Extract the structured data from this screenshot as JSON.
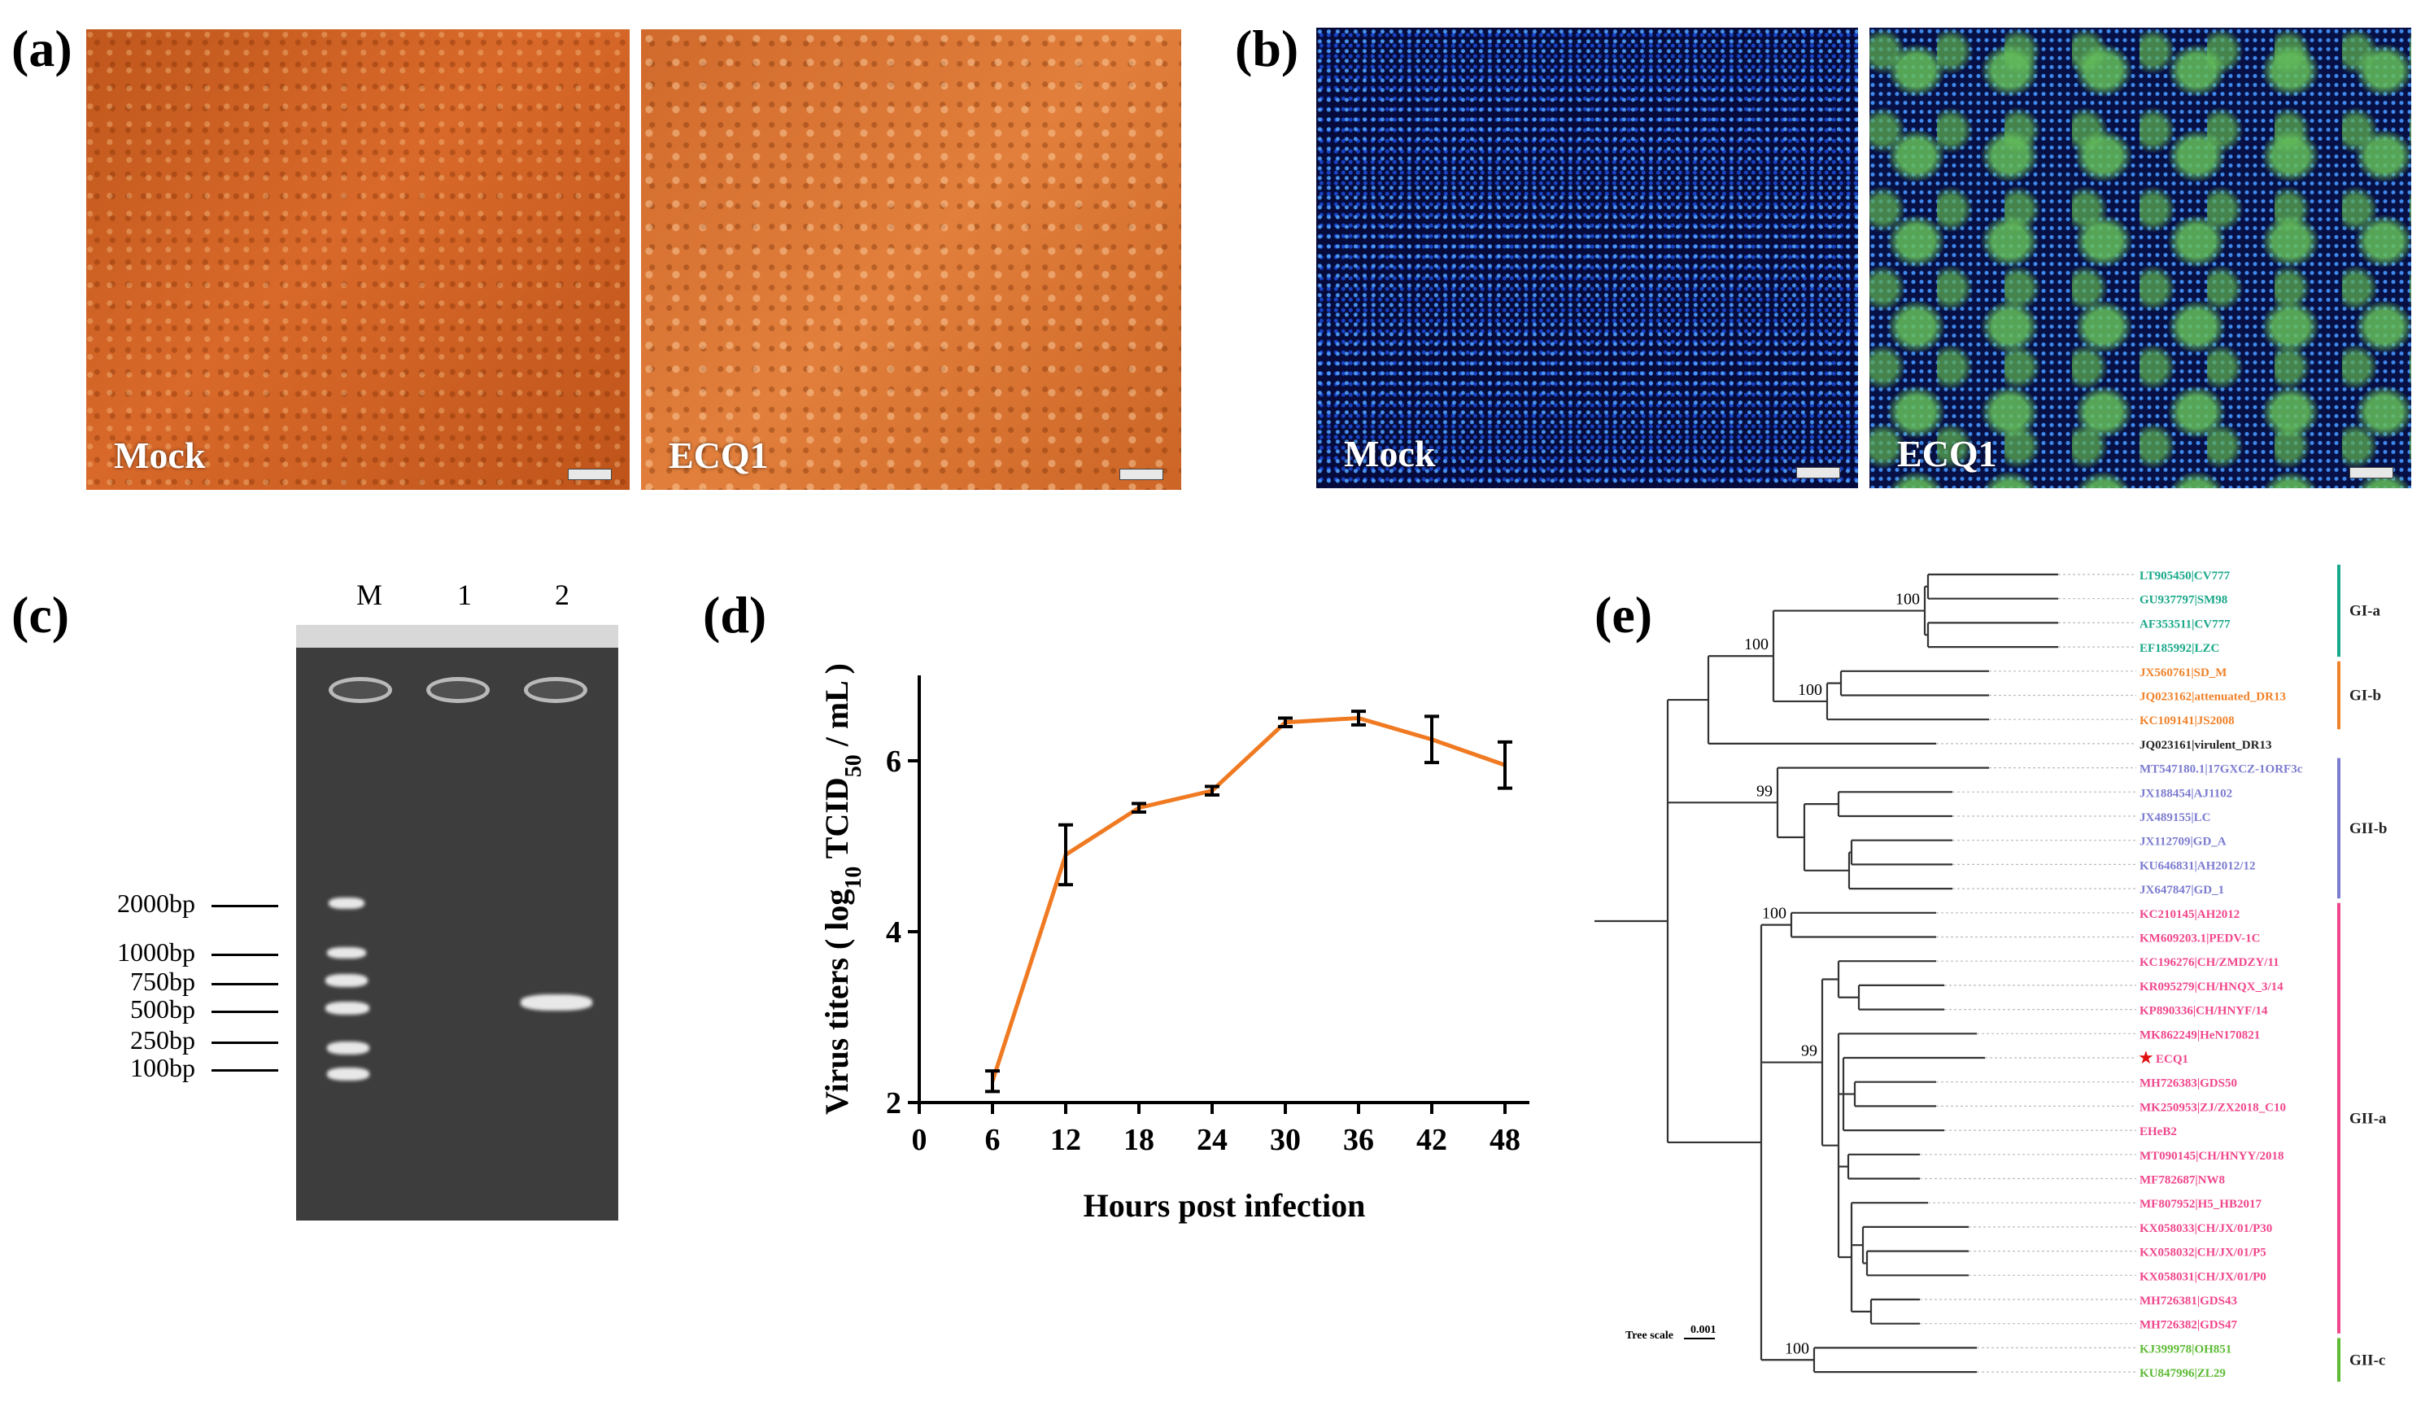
{
  "panels": {
    "a": {
      "label": "(a)",
      "left_caption": "Mock",
      "right_caption": "ECQ1"
    },
    "b": {
      "label": "(b)",
      "left_caption": "Mock",
      "right_caption": "ECQ1"
    },
    "c": {
      "label": "(c)",
      "lanes": [
        "M",
        "1",
        "2"
      ],
      "markers": [
        "2000bp",
        "1000bp",
        "750bp",
        "500bp",
        "250bp",
        "100bp"
      ]
    },
    "d": {
      "label": "(d)"
    },
    "e": {
      "label": "(e)",
      "tree_scale_label": "Tree scale",
      "tree_scale_value": "0.001"
    }
  },
  "chart_data": [
    {
      "type": "line",
      "panel": "d",
      "title": "",
      "xlabel": "Hours post infection",
      "ylabel": "Virus titers ( log10 TCID50 / mL )",
      "x": [
        6,
        12,
        18,
        24,
        30,
        36,
        42,
        48
      ],
      "series": [
        {
          "values": [
            2.25,
            4.9,
            5.45,
            5.65,
            6.45,
            6.5,
            6.25,
            5.95
          ],
          "errors": [
            0.12,
            0.35,
            0.05,
            0.05,
            0.05,
            0.08,
            0.27,
            0.27
          ],
          "color": "#f07a22"
        }
      ],
      "xticks": [
        0,
        6,
        12,
        18,
        24,
        30,
        36,
        42,
        48
      ],
      "yticks": [
        2,
        4,
        6
      ],
      "xlim": [
        0,
        50
      ],
      "ylim": [
        2,
        7
      ],
      "grid": false
    },
    {
      "type": "tree",
      "panel": "e",
      "bootstrap_values": [
        "100",
        "100",
        "100",
        "99",
        "100",
        "99",
        "100"
      ],
      "marked_taxon": "ECQ1",
      "taxa": [
        {
          "name": "LT905450|CV777",
          "group": "GI-a"
        },
        {
          "name": "GU937797|SM98",
          "group": "GI-a"
        },
        {
          "name": "AF353511|CV777",
          "group": "GI-a"
        },
        {
          "name": "EF185992|LZC",
          "group": "GI-a"
        },
        {
          "name": "JX560761|SD_M",
          "group": "GI-b"
        },
        {
          "name": "JQ023162|attenuated_DR13",
          "group": "GI-b"
        },
        {
          "name": "KC109141|JS2008",
          "group": "GI-b"
        },
        {
          "name": "JQ023161|virulent_DR13",
          "group": ""
        },
        {
          "name": "MT547180.1|17GXCZ-1ORF3c",
          "group": "GII-b"
        },
        {
          "name": "JX188454|AJ1102",
          "group": "GII-b"
        },
        {
          "name": "JX489155|LC",
          "group": "GII-b"
        },
        {
          "name": "JX112709|GD_A",
          "group": "GII-b"
        },
        {
          "name": "KU646831|AH2012/12",
          "group": "GII-b"
        },
        {
          "name": "JX647847|GD_1",
          "group": "GII-b"
        },
        {
          "name": "KC210145|AH2012",
          "group": "GII-a"
        },
        {
          "name": "KM609203.1|PEDV-1C",
          "group": "GII-a"
        },
        {
          "name": "KC196276|CH/ZMDZY/11",
          "group": "GII-a"
        },
        {
          "name": "KR095279|CH/HNQX_3/14",
          "group": "GII-a"
        },
        {
          "name": "KP890336|CH/HNYF/14",
          "group": "GII-a"
        },
        {
          "name": "MK862249|HeN170821",
          "group": "GII-a"
        },
        {
          "name": "ECQ1",
          "group": "GII-a"
        },
        {
          "name": "MH726383|GDS50",
          "group": "GII-a"
        },
        {
          "name": "MK250953|ZJ/ZX2018_C10",
          "group": "GII-a"
        },
        {
          "name": "EHeB2",
          "group": "GII-a"
        },
        {
          "name": "MT090145|CH/HNYY/2018",
          "group": "GII-a"
        },
        {
          "name": "MF782687|NW8",
          "group": "GII-a"
        },
        {
          "name": "MF807952|H5_HB2017",
          "group": "GII-a"
        },
        {
          "name": "KX058033|CH/JX/01/P30",
          "group": "GII-a"
        },
        {
          "name": "KX058032|CH/JX/01/P5",
          "group": "GII-a"
        },
        {
          "name": "KX058031|CH/JX/01/P0",
          "group": "GII-a"
        },
        {
          "name": "MH726381|GDS43",
          "group": "GII-a"
        },
        {
          "name": "MH726382|GDS47",
          "group": "GII-a"
        },
        {
          "name": "KJ399978|OH851",
          "group": "GII-c"
        },
        {
          "name": "KU847996|ZL29",
          "group": "GII-c"
        }
      ],
      "groups": [
        {
          "name": "GI-a",
          "color": "#1aa88a"
        },
        {
          "name": "GI-b",
          "color": "#f0822a"
        },
        {
          "name": "GII-b",
          "color": "#7b7bd0"
        },
        {
          "name": "GII-a",
          "color": "#f0468c"
        },
        {
          "name": "GII-c",
          "color": "#5dbb35"
        }
      ]
    }
  ]
}
